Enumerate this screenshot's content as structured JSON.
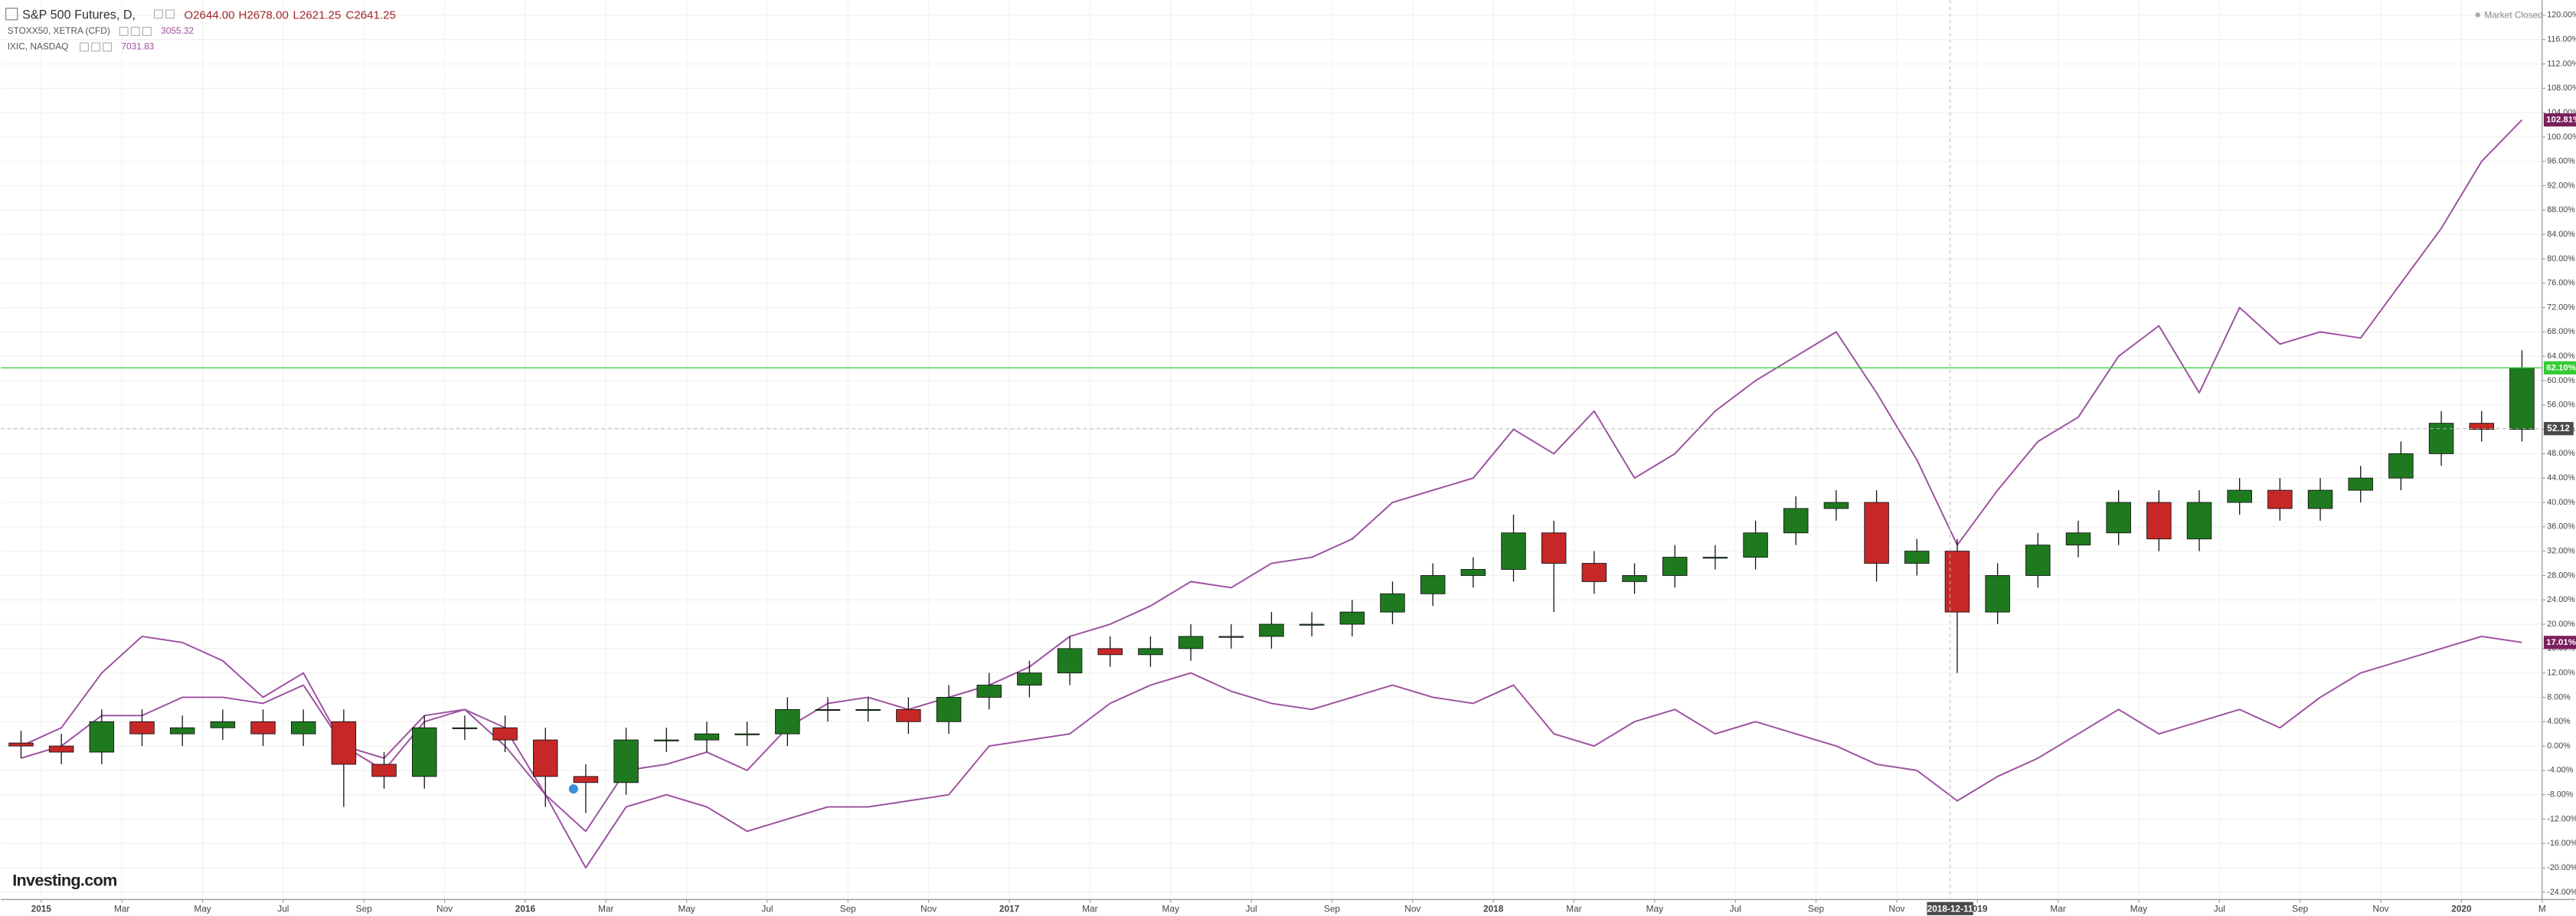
{
  "chart_data": {
    "type": "candlestick",
    "title": "S&P 500 Futures, D,",
    "ohlc_text": [
      "O2644.00",
      "H2678.00",
      "L2621.25",
      "C2641.25"
    ],
    "status": "Market Closed",
    "logo": "Investing.com",
    "x": [
      "2014-12",
      "2015-01",
      "2015-02",
      "2015-03",
      "2015-04",
      "2015-05",
      "2015-06",
      "2015-07",
      "2015-08",
      "2015-09",
      "2015-10",
      "2015-11",
      "2015-12",
      "2016-01",
      "2016-02",
      "2016-03",
      "2016-04",
      "2016-05",
      "2016-06",
      "2016-07",
      "2016-08",
      "2016-09",
      "2016-10",
      "2016-11",
      "2016-12",
      "2017-01",
      "2017-02",
      "2017-03",
      "2017-04",
      "2017-05",
      "2017-06",
      "2017-07",
      "2017-08",
      "2017-09",
      "2017-10",
      "2017-11",
      "2017-12",
      "2018-01",
      "2018-02",
      "2018-03",
      "2018-04",
      "2018-05",
      "2018-06",
      "2018-07",
      "2018-08",
      "2018-09",
      "2018-10",
      "2018-11",
      "2018-12",
      "2019-01",
      "2019-02",
      "2019-03",
      "2019-04",
      "2019-05",
      "2019-06",
      "2019-07",
      "2019-08",
      "2019-09",
      "2019-10",
      "2019-11",
      "2019-12",
      "2020-01",
      "2020-02"
    ],
    "xlim": [
      "2014-12",
      "2020-03"
    ],
    "xticks": [
      {
        "value": "2015-01",
        "label": "2015"
      },
      {
        "value": "2015-03",
        "label": "Mar"
      },
      {
        "value": "2015-05",
        "label": "May"
      },
      {
        "value": "2015-07",
        "label": "Jul"
      },
      {
        "value": "2015-09",
        "label": "Sep"
      },
      {
        "value": "2015-11",
        "label": "Nov"
      },
      {
        "value": "2016-01",
        "label": "2016"
      },
      {
        "value": "2016-03",
        "label": "Mar"
      },
      {
        "value": "2016-05",
        "label": "May"
      },
      {
        "value": "2016-07",
        "label": "Jul"
      },
      {
        "value": "2016-09",
        "label": "Sep"
      },
      {
        "value": "2016-11",
        "label": "Nov"
      },
      {
        "value": "2017-01",
        "label": "2017"
      },
      {
        "value": "2017-03",
        "label": "Mar"
      },
      {
        "value": "2017-05",
        "label": "May"
      },
      {
        "value": "2017-07",
        "label": "Jul"
      },
      {
        "value": "2017-09",
        "label": "Sep"
      },
      {
        "value": "2017-11",
        "label": "Nov"
      },
      {
        "value": "2018-01",
        "label": "2018"
      },
      {
        "value": "2018-03",
        "label": "Mar"
      },
      {
        "value": "2018-05",
        "label": "May"
      },
      {
        "value": "2018-07",
        "label": "Jul"
      },
      {
        "value": "2018-09",
        "label": "Sep"
      },
      {
        "value": "2018-11",
        "label": "Nov"
      },
      {
        "value": "2019-01",
        "label": "2019"
      },
      {
        "value": "2019-03",
        "label": "Mar"
      },
      {
        "value": "2019-05",
        "label": "May"
      },
      {
        "value": "2019-07",
        "label": "Jul"
      },
      {
        "value": "2019-09",
        "label": "Sep"
      },
      {
        "value": "2019-11",
        "label": "Nov"
      },
      {
        "value": "2020-01",
        "label": "2020"
      },
      {
        "value": "2020-03",
        "label": "M"
      }
    ],
    "ylim": [
      -25.2,
      122.5
    ],
    "yticks": [
      {
        "value": -24,
        "label": "-24.00%"
      },
      {
        "value": -20,
        "label": "-20.00%"
      },
      {
        "value": -16,
        "label": "-16.00%"
      },
      {
        "value": -12,
        "label": "-12.00%"
      },
      {
        "value": -8,
        "label": "-8.00%"
      },
      {
        "value": -4,
        "label": "-4.00%"
      },
      {
        "value": 0,
        "label": "0.00%"
      },
      {
        "value": 4,
        "label": "4.00%"
      },
      {
        "value": 8,
        "label": "8.00%"
      },
      {
        "value": 12,
        "label": "12.00%"
      },
      {
        "value": 16,
        "label": "16.00%"
      },
      {
        "value": 20,
        "label": "20.00%"
      },
      {
        "value": 24,
        "label": "24.00%"
      },
      {
        "value": 28,
        "label": "28.00%"
      },
      {
        "value": 32,
        "label": "32.00%"
      },
      {
        "value": 36,
        "label": "36.00%"
      },
      {
        "value": 40,
        "label": "40.00%"
      },
      {
        "value": 44,
        "label": "44.00%"
      },
      {
        "value": 48,
        "label": "48.00%"
      },
      {
        "value": 52,
        "label": "52.00%"
      },
      {
        "value": 56,
        "label": "56.00%"
      },
      {
        "value": 60,
        "label": "60.00%"
      },
      {
        "value": 64,
        "label": "64.00%"
      },
      {
        "value": 68,
        "label": "68.00%"
      },
      {
        "value": 72,
        "label": "72.00%"
      },
      {
        "value": 76,
        "label": "76.00%"
      },
      {
        "value": 80,
        "label": "80.00%"
      },
      {
        "value": 84,
        "label": "84.00%"
      },
      {
        "value": 88,
        "label": "88.00%"
      },
      {
        "value": 92,
        "label": "92.00%"
      },
      {
        "value": 96,
        "label": "96.00%"
      },
      {
        "value": 100,
        "label": "100.00%"
      },
      {
        "value": 104,
        "label": "104.00%"
      },
      {
        "value": 108,
        "label": "108.00%"
      },
      {
        "value": 112,
        "label": "112.00%"
      },
      {
        "value": 116,
        "label": "116.00%"
      },
      {
        "value": 120,
        "label": "120.00%"
      }
    ],
    "grid": true,
    "ohlc": {
      "open": [
        0.5,
        0,
        -1,
        4,
        2,
        3,
        4,
        2,
        4,
        -3,
        -5,
        3,
        3,
        1,
        -5,
        -6,
        1,
        1,
        2,
        2,
        6,
        6,
        6,
        4,
        8,
        10,
        12,
        16,
        15,
        16,
        18,
        18,
        20,
        20,
        22,
        25,
        28,
        29,
        35,
        30,
        27,
        28,
        31,
        31,
        35,
        39,
        40,
        30,
        32,
        22,
        28,
        33,
        35,
        40,
        34,
        40,
        42,
        39,
        42,
        44,
        48,
        53,
        52
      ],
      "high": [
        2.5,
        2,
        6,
        6,
        5,
        6,
        6,
        6,
        6,
        -1,
        5,
        5,
        5,
        3,
        -3,
        3,
        3,
        4,
        4,
        8,
        8,
        8,
        8,
        10,
        12,
        14,
        18,
        18,
        18,
        20,
        20,
        22,
        22,
        24,
        27,
        30,
        31,
        38,
        37,
        32,
        30,
        33,
        33,
        37,
        41,
        42,
        42,
        34,
        34,
        30,
        35,
        37,
        42,
        42,
        42,
        44,
        44,
        44,
        46,
        50,
        55,
        55,
        65
      ],
      "low": [
        -2,
        -3,
        -3,
        0,
        0,
        1,
        0,
        0,
        -10,
        -7,
        -7,
        1,
        -1,
        -10,
        -11,
        -8,
        -1,
        -1,
        0,
        0,
        4,
        4,
        2,
        2,
        6,
        8,
        10,
        13,
        13,
        14,
        16,
        16,
        18,
        18,
        20,
        23,
        26,
        27,
        22,
        25,
        25,
        26,
        29,
        29,
        33,
        37,
        27,
        28,
        12,
        20,
        26,
        31,
        33,
        32,
        32,
        38,
        37,
        37,
        40,
        42,
        46,
        50,
        50
      ],
      "close": [
        0,
        -1,
        4,
        2,
        3,
        4,
        2,
        4,
        -3,
        -5,
        3,
        3,
        1,
        -5,
        -6,
        1,
        1,
        2,
        2,
        6,
        6,
        6,
        4,
        8,
        10,
        12,
        16,
        15,
        16,
        18,
        18,
        20,
        20,
        22,
        25,
        28,
        29,
        35,
        30,
        27,
        28,
        31,
        31,
        35,
        39,
        40,
        30,
        32,
        22,
        28,
        33,
        35,
        40,
        34,
        40,
        42,
        39,
        42,
        44,
        48,
        53,
        52,
        62.1
      ],
      "up_color": "#1f7a1f",
      "down_color": "#c62828",
      "last_label": "62.10%",
      "last_color": "#33cc33"
    },
    "series": [
      {
        "name": "STOXX50, XETRA (CFD)",
        "price": "3055.32",
        "color": "#9c4f9f",
        "label_color": "#7b1f5e",
        "values": [
          0,
          3,
          12,
          18,
          17,
          14,
          8,
          12,
          0,
          -4,
          4,
          6,
          0,
          -8,
          -20,
          -10,
          -8,
          -10,
          -14,
          -12,
          -10,
          -10,
          -9,
          -8,
          0,
          1,
          2,
          7,
          10,
          12,
          9,
          7,
          6,
          8,
          10,
          8,
          7,
          10,
          2,
          0,
          4,
          6,
          2,
          4,
          2,
          0,
          -3,
          -4,
          -9,
          -5,
          -2,
          2,
          6,
          2,
          4,
          6,
          3,
          8,
          12,
          14,
          16,
          18,
          17.01
        ],
        "last_label": "17.01%"
      },
      {
        "name": "IXIC, NASDAQ",
        "price": "7031.83",
        "color": "#9c4f9f",
        "label_color": "#7b1f5e",
        "values": [
          -2,
          0,
          5,
          5,
          8,
          8,
          7,
          10,
          0,
          -2,
          5,
          6,
          3,
          -8,
          -14,
          -4,
          -3,
          -1,
          -4,
          3,
          7,
          8,
          6,
          8,
          10,
          13,
          18,
          20,
          23,
          27,
          26,
          30,
          31,
          34,
          40,
          42,
          44,
          52,
          48,
          55,
          44,
          48,
          55,
          60,
          64,
          68,
          58,
          47,
          33,
          42,
          50,
          54,
          64,
          69,
          58,
          72,
          66,
          68,
          67,
          76,
          85,
          96,
          102.81
        ],
        "last_label": "102.81%"
      }
    ],
    "crosshair": {
      "x": "2018-12-11",
      "y": 52.12
    }
  }
}
